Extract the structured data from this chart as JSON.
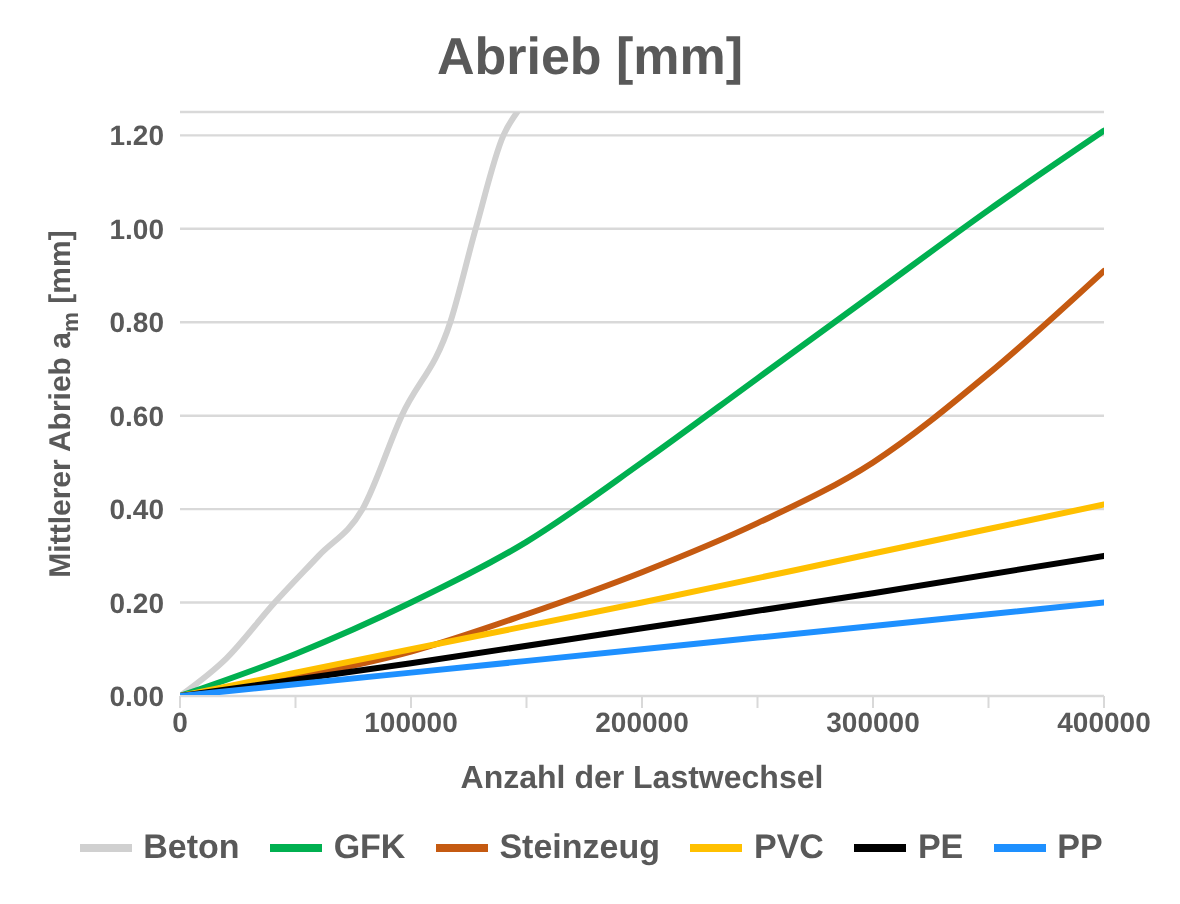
{
  "chart_data": {
    "type": "line",
    "title": "Abrieb [mm]",
    "xlabel": "Anzahl der Lastwechsel",
    "ylabel": "Mittlerer Abrieb a$_{m}$ [mm]",
    "xlim": [
      0,
      400000
    ],
    "xticks": [
      0,
      {
        "value": 50000,
        "label": null
      },
      100000,
      {
        "value": 150000,
        "label": null
      },
      200000,
      {
        "value": 250000,
        "label": null
      },
      300000,
      {
        "value": 350000,
        "label": null
      },
      400000
    ],
    "ylim": [
      0,
      1.25
    ],
    "yticks": [
      {
        "value": 0,
        "label": "0.00"
      },
      {
        "value": 0.2,
        "label": "0.20"
      },
      {
        "value": 0.4,
        "label": "0.40"
      },
      {
        "value": 0.6,
        "label": "0.60"
      },
      {
        "value": 0.8,
        "label": "0.80"
      },
      {
        "value": 1.0,
        "label": "1.00"
      },
      {
        "value": 1.2,
        "label": "1.20"
      }
    ],
    "grid": "y",
    "legend": "bottom",
    "marker": "none",
    "line_style": "solid",
    "series": [
      {
        "name": "Beton",
        "color": "#d0d0d0",
        "x": [
          0,
          20000,
          41000,
          60000,
          79000,
          96000,
          117000,
          128000,
          140000,
          146000
        ],
        "values": [
          0,
          0.08,
          0.2,
          0.3,
          0.4,
          0.6,
          0.8,
          1.0,
          1.2,
          1.25
        ]
      },
      {
        "name": "GFK",
        "color": "#00b050",
        "x": [
          0,
          50000,
          100000,
          150000,
          200000,
          250000,
          300000,
          350000,
          400000
        ],
        "values": [
          0,
          0.09,
          0.2,
          0.33,
          0.5,
          0.68,
          0.86,
          1.04,
          1.21
        ]
      },
      {
        "name": "Steinzeug",
        "color": "#c55a11",
        "x": [
          0,
          50000,
          100000,
          150000,
          200000,
          250000,
          300000,
          350000,
          400000
        ],
        "values": [
          0,
          0.04,
          0.095,
          0.175,
          0.265,
          0.37,
          0.5,
          0.69,
          0.91
        ]
      },
      {
        "name": "PVC",
        "color": "#ffc000",
        "x": [
          0,
          100000,
          200000,
          300000,
          400000
        ],
        "values": [
          0,
          0.1,
          0.2,
          0.305,
          0.41
        ]
      },
      {
        "name": "PE",
        "color": "#000000",
        "x": [
          0,
          100000,
          200000,
          300000,
          400000
        ],
        "values": [
          0,
          0.07,
          0.145,
          0.22,
          0.3
        ]
      },
      {
        "name": "PP",
        "color": "#1e90ff",
        "x": [
          0,
          100000,
          200000,
          300000,
          400000
        ],
        "values": [
          0,
          0.05,
          0.1,
          0.15,
          0.2
        ]
      }
    ]
  }
}
